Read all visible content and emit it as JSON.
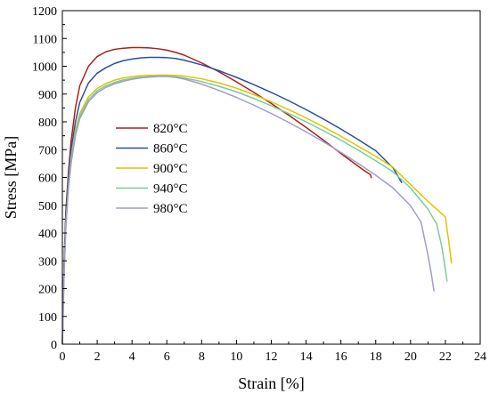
{
  "chart_data": {
    "type": "line",
    "xlabel": "Strain [%]",
    "ylabel": "Stress [MPa]",
    "xlim": [
      0,
      24
    ],
    "ylim": [
      0,
      1200
    ],
    "xticks": [
      0,
      2,
      4,
      6,
      8,
      10,
      12,
      14,
      16,
      18,
      20,
      22,
      24
    ],
    "yticks": [
      0,
      100,
      200,
      300,
      400,
      500,
      600,
      700,
      800,
      900,
      1000,
      1100,
      1200
    ],
    "grid": false,
    "legend_position": "center-left",
    "series": [
      {
        "name": "820°C",
        "color": "#A8201A",
        "x": [
          0,
          0.1,
          0.2,
          0.35,
          0.5,
          0.75,
          1.0,
          1.5,
          2.0,
          2.5,
          3.0,
          3.5,
          4.0,
          4.5,
          5.0,
          5.5,
          6.0,
          6.5,
          7.0,
          8.0,
          9.0,
          10.0,
          11.0,
          12.0,
          13.0,
          14.0,
          15.0,
          16.0,
          17.0,
          17.4,
          17.7,
          17.75
        ],
        "y": [
          0,
          300,
          480,
          620,
          730,
          850,
          930,
          1000,
          1035,
          1052,
          1061,
          1065,
          1067,
          1067,
          1066,
          1063,
          1058,
          1050,
          1040,
          1012,
          980,
          944,
          906,
          866,
          824,
          780,
          734,
          686,
          640,
          622,
          610,
          598
        ]
      },
      {
        "name": "860°C",
        "color": "#2A4FA0",
        "x": [
          0,
          0.1,
          0.2,
          0.35,
          0.5,
          0.75,
          1.0,
          1.5,
          2.0,
          2.5,
          3.0,
          3.5,
          4.0,
          4.5,
          5.0,
          5.5,
          6.0,
          6.5,
          7.0,
          8.0,
          9.0,
          10.0,
          11.0,
          12.0,
          13.0,
          14.0,
          15.0,
          16.0,
          17.0,
          18.0,
          19.0,
          19.5
        ],
        "y": [
          0,
          280,
          460,
          600,
          700,
          800,
          870,
          940,
          975,
          995,
          1010,
          1020,
          1026,
          1030,
          1032,
          1032,
          1031,
          1028,
          1022,
          1005,
          984,
          960,
          934,
          906,
          876,
          844,
          810,
          774,
          736,
          696,
          634,
          580
        ]
      },
      {
        "name": "900°C",
        "color": "#D9C600",
        "x": [
          0,
          0.1,
          0.2,
          0.35,
          0.5,
          0.75,
          1.0,
          1.5,
          2.0,
          2.5,
          3.0,
          3.5,
          4.0,
          4.5,
          5.0,
          5.5,
          6.0,
          6.5,
          7.0,
          8.0,
          9.0,
          10.0,
          11.0,
          12.0,
          13.0,
          14.0,
          15.0,
          16.0,
          17.0,
          18.0,
          19.0,
          20.0,
          21.0,
          22.0,
          22.1,
          22.2,
          22.35
        ],
        "y": [
          0,
          260,
          430,
          570,
          670,
          770,
          830,
          890,
          920,
          938,
          950,
          958,
          963,
          966,
          967,
          968,
          968,
          967,
          965,
          955,
          940,
          921,
          898,
          872,
          844,
          814,
          782,
          748,
          712,
          676,
          636,
          574,
          514,
          458,
          410,
          370,
          290
        ]
      },
      {
        "name": "940°C",
        "color": "#7DCB98",
        "x": [
          0,
          0.1,
          0.2,
          0.35,
          0.5,
          0.75,
          1.0,
          1.5,
          2.0,
          2.5,
          3.0,
          3.5,
          4.0,
          4.5,
          5.0,
          5.5,
          6.0,
          6.5,
          7.0,
          8.0,
          9.0,
          10.0,
          11.0,
          12.0,
          13.0,
          14.0,
          15.0,
          16.0,
          17.0,
          18.0,
          19.0,
          20.0,
          21.0,
          21.5,
          21.8,
          22.0,
          22.1
        ],
        "y": [
          0,
          260,
          430,
          570,
          660,
          760,
          820,
          880,
          912,
          930,
          942,
          951,
          957,
          961,
          963,
          964,
          964,
          962,
          958,
          945,
          928,
          908,
          884,
          858,
          830,
          800,
          768,
          734,
          698,
          660,
          620,
          562,
          486,
          432,
          350,
          270,
          225
        ]
      },
      {
        "name": "980°C",
        "color": "#9E9EC8",
        "x": [
          0,
          0.1,
          0.2,
          0.35,
          0.5,
          0.75,
          1.0,
          1.5,
          2.0,
          2.5,
          3.0,
          3.5,
          4.0,
          4.5,
          5.0,
          5.5,
          6.0,
          6.5,
          7.0,
          8.0,
          9.0,
          10.0,
          11.0,
          12.0,
          13.0,
          14.0,
          15.0,
          16.0,
          17.0,
          18.0,
          19.0,
          20.0,
          20.6,
          20.8,
          21.0,
          21.2,
          21.35
        ],
        "y": [
          0,
          250,
          420,
          560,
          650,
          750,
          812,
          872,
          905,
          924,
          937,
          946,
          953,
          958,
          961,
          963,
          963,
          960,
          954,
          936,
          913,
          888,
          860,
          830,
          798,
          764,
          728,
          690,
          650,
          608,
          562,
          498,
          440,
          380,
          320,
          250,
          190
        ]
      }
    ]
  }
}
